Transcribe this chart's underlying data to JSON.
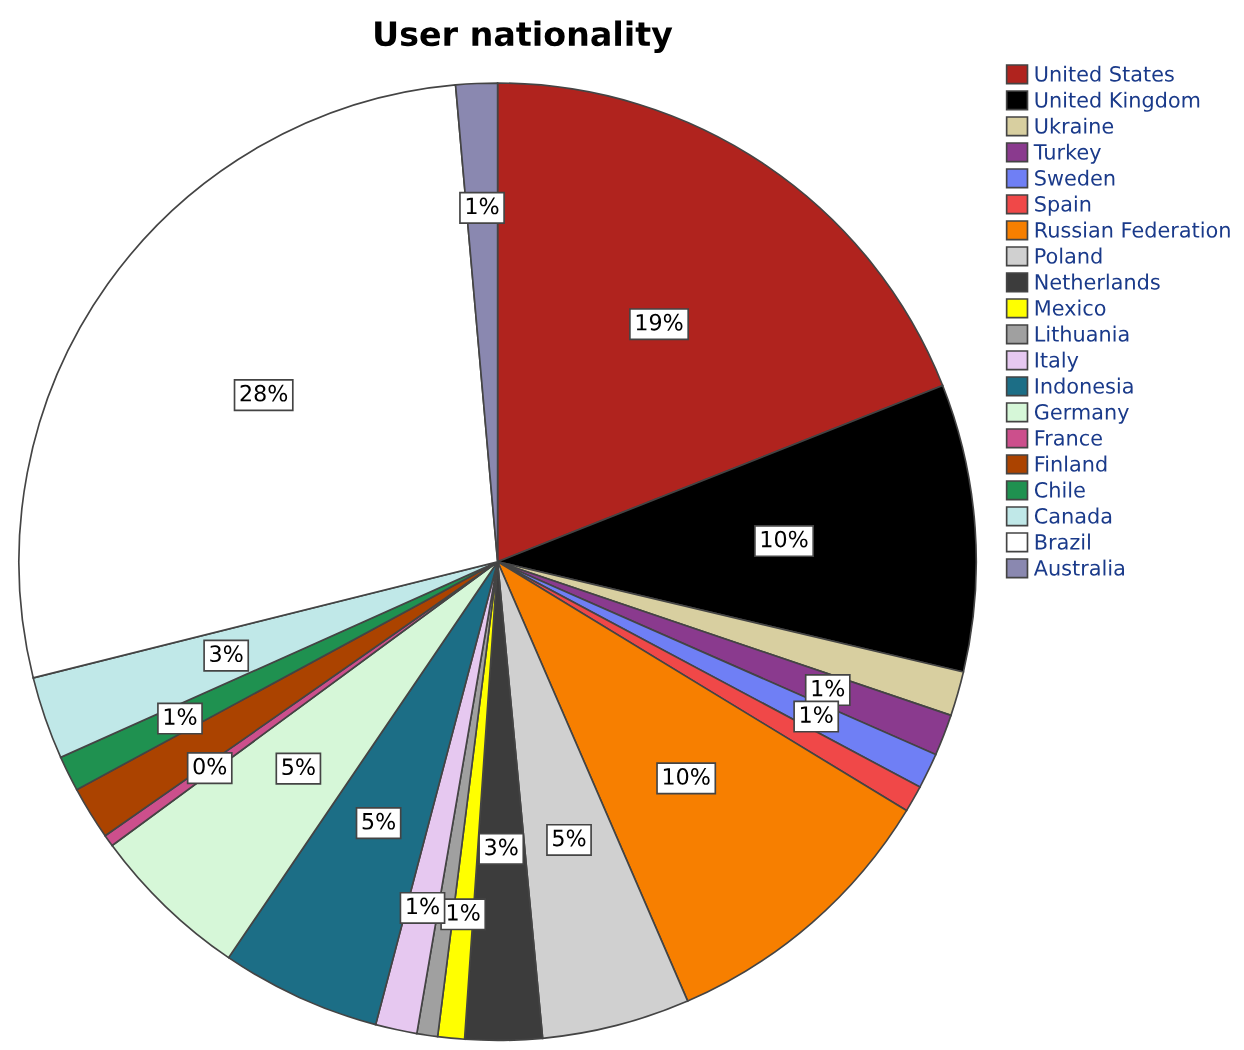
{
  "chart_data": {
    "type": "pie",
    "title": "User nationality",
    "categories": [
      "United States",
      "United Kingdom",
      "Ukraine",
      "Turkey",
      "Sweden",
      "Spain",
      "Russian Federation",
      "Poland",
      "Netherlands",
      "Mexico",
      "Lithuania",
      "Italy",
      "Indonesia",
      "Germany",
      "France",
      "Finland",
      "Chile",
      "Canada",
      "Brazil",
      "Australia"
    ],
    "values": [
      19.0,
      9.7,
      1.5,
      1.4,
      1.2,
      0.9,
      9.8,
      5.0,
      2.6,
      0.9,
      0.7,
      1.4,
      5.4,
      5.4,
      0.4,
      1.8,
      1.2,
      2.8,
      27.5,
      1.4
    ],
    "value_labels": [
      "19%",
      "10%",
      null,
      "1%",
      "1%",
      null,
      "10%",
      "5%",
      "3%",
      "1%",
      null,
      "1%",
      "5%",
      "5%",
      "0%",
      null,
      "1%",
      "3%",
      "28%",
      "1%"
    ],
    "colors": [
      "#b0231e",
      "#000000",
      "#d8cfa0",
      "#8a3a8e",
      "#6f7ff5",
      "#f04848",
      "#f77f00",
      "#d0d0d0",
      "#3c3c3c",
      "#ffff00",
      "#a0a0a0",
      "#e6c8f0",
      "#1c6e86",
      "#d6f7d8",
      "#cc4f8c",
      "#ab4300",
      "#1f9150",
      "#c0e8e8",
      "#ffffff",
      "#8a88b0"
    ],
    "legend": "top right"
  }
}
